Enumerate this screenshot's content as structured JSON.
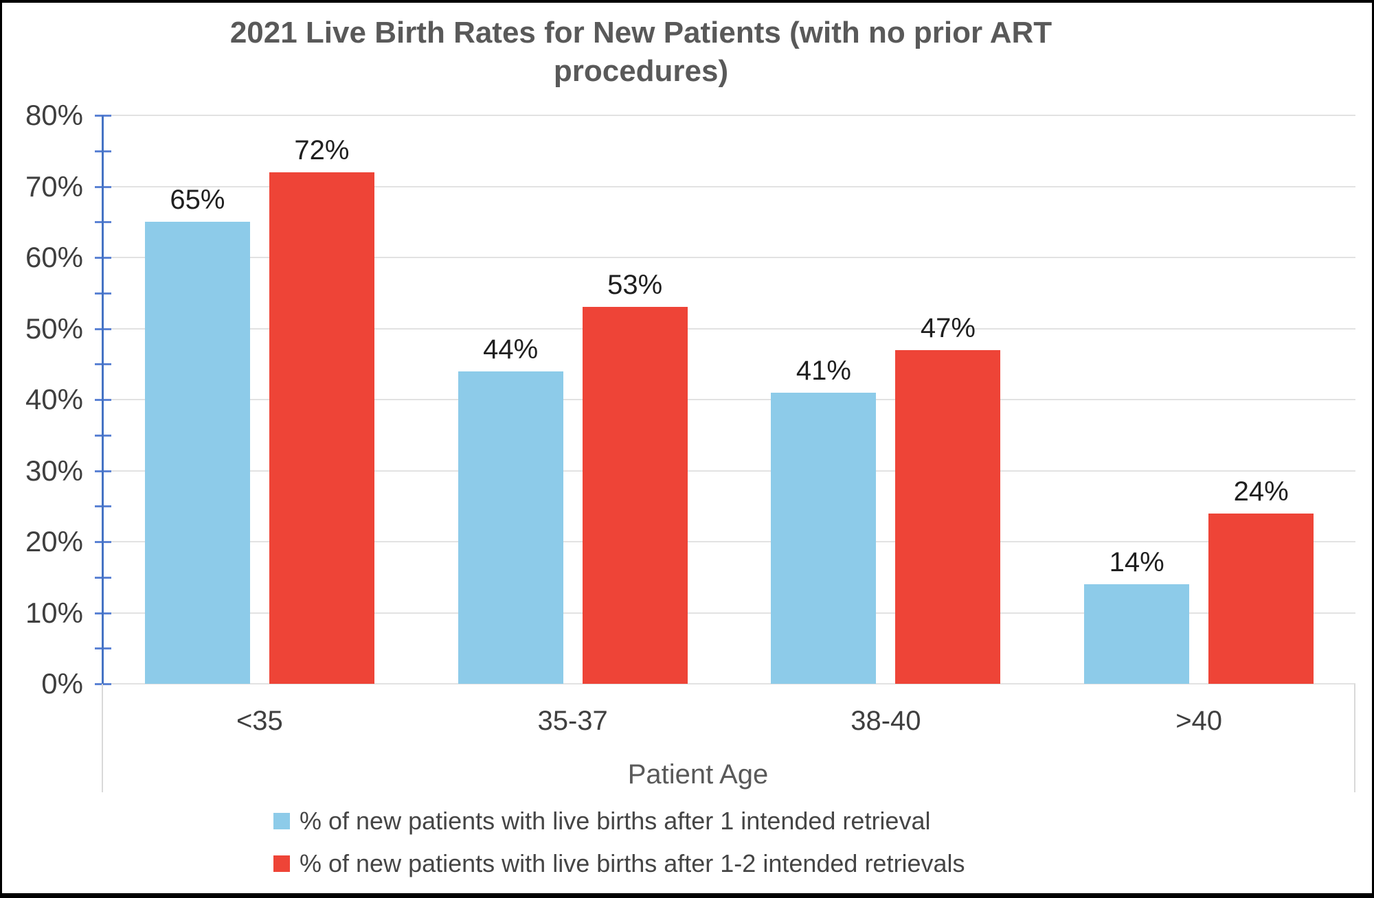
{
  "page": {
    "background": "#ffffff",
    "border_color": "#000000"
  },
  "chart_data": {
    "type": "bar",
    "title": "2021 Live Birth Rates for New Patients (with no prior ART procedures)",
    "title_lines": [
      "2021 Live Birth Rates for New Patients (with no prior ART",
      "procedures)"
    ],
    "categories": [
      "<35",
      "35-37",
      "38-40",
      ">40"
    ],
    "series": [
      {
        "name": "% of new patients with live births after 1 intended retrieval",
        "color": "#8DCBE9",
        "values": [
          65,
          44,
          41,
          14
        ]
      },
      {
        "name": "% of new patients with live births after 1-2 intended retrievals",
        "color": "#EE4437",
        "values": [
          72,
          53,
          47,
          24
        ]
      }
    ],
    "data_label_suffix": "%",
    "xlabel": "Patient Age",
    "ylabel": "",
    "ylim": [
      0,
      80
    ],
    "ytick_step": 10,
    "ytick_minor_step": 5,
    "ytick_labels": [
      "0%",
      "10%",
      "20%",
      "30%",
      "40%",
      "50%",
      "60%",
      "70%",
      "80%"
    ],
    "grid": true,
    "legend_position": "bottom-left",
    "colors": {
      "axis": "#4573C4",
      "tick": "#5C83D4",
      "gridline": "#E2E2E2",
      "title_text": "#595959",
      "tick_label_text": "#3F3F3F",
      "data_label_text": "#1F1F1F",
      "legend_text": "#454545",
      "axis_title_text": "#595959",
      "strip_border": "#D9D9D9"
    }
  }
}
